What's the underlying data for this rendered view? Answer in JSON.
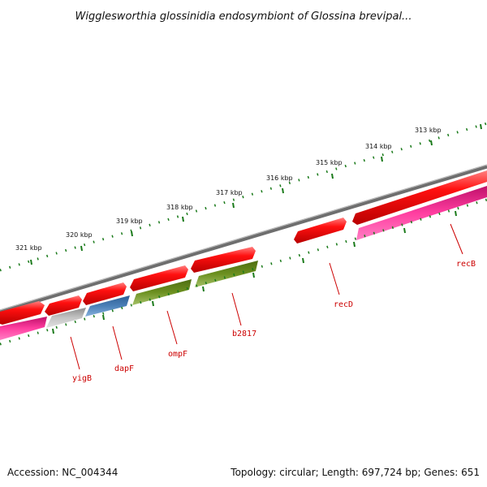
{
  "title": "Wigglesworthia glossinidia endosymbiont of Glossina brevipal...",
  "footer": {
    "accession": "Accession: NC_004344",
    "summary": "Topology: circular; Length: 697,724 bp; Genes: 651"
  },
  "scale_labels": [
    "321 kbp",
    "320 kbp",
    "319 kbp",
    "318 kbp",
    "317 kbp",
    "316 kbp",
    "315 kbp",
    "314 kbp",
    "313 kbp"
  ],
  "gene_labels": [
    "yigB",
    "dapF",
    "ompF",
    "b2817",
    "recD",
    "recB"
  ],
  "colors": {
    "backbone": "#808080",
    "cds_forward": "#ee0000",
    "cds_reverse_magenta": "#ee1188",
    "cds_gray": "#b0b0b0",
    "cds_blue": "#4a7fb5",
    "cds_green": "#6a8f20",
    "ticks": "#1a7a1a",
    "gene_label": "#cc0000"
  }
}
